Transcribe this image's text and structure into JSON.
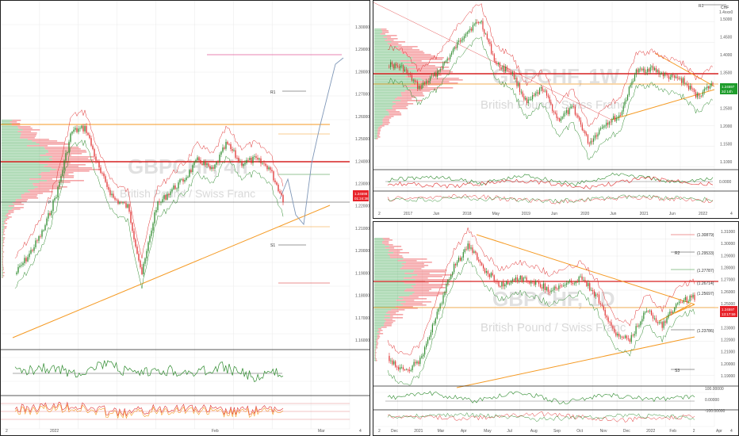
{
  "colors": {
    "up": "#2e8b2e",
    "down": "#e03131",
    "orange": "#f59a23",
    "red_line": "#d62020",
    "grid": "#e9e9e9",
    "profile_green": "#37a34a",
    "profile_red": "#e8353a",
    "price_tag_red": "#e8232a",
    "price_tag_green": "#1f9d2c",
    "pink": "#e05a9a",
    "projection": "#7f97b8"
  },
  "left_pane": {
    "watermark_symbol": "GBPCHF, 4h",
    "watermark_name": "British Pound / Swiss Franc",
    "price_labels": [
      "1.30000",
      "1.29000",
      "1.28000",
      "1.27000",
      "1.26000",
      "1.25000",
      "1.24000",
      "1.23000",
      "1.22000",
      "1.21000",
      "1.20000",
      "1.19000",
      "1.18000",
      "1.17000",
      "1.16000"
    ],
    "price_tag": "1.24598",
    "price_tag_sub": "01:24:38",
    "level_tag_r1": "R1",
    "level_tag_s1": "S1",
    "level_tag_p": "P",
    "date_labels": [
      "2022",
      "Feb",
      "Mar"
    ],
    "osc1_labels": [
      "100",
      "50",
      "0"
    ],
    "osc2_labels": [
      "80",
      "60",
      "40",
      "20"
    ],
    "corner_left": "2",
    "corner_right": "4"
  },
  "top_right_pane": {
    "watermark_symbol": "GBPCHF, 1W",
    "watermark_name": "British Pound / Swiss Franc",
    "currency": "CHF",
    "currency_sub": "1.4xxx0",
    "price_labels": [
      "1.5000",
      "1.4500",
      "1.4000",
      "1.3500",
      "1.3000",
      "1.2500",
      "1.2000",
      "1.1500",
      "1.1000"
    ],
    "price_tag": "1.24597",
    "price_tag_sub": "2d 14h",
    "r1_tag": "R1",
    "date_labels": [
      "2017",
      "Jun",
      "2018",
      "May",
      "2019",
      "Jun",
      "2020",
      "Jun",
      "2021",
      "Jun",
      "2022"
    ],
    "osc_labels": [
      "0.0000"
    ],
    "corner_left": "2",
    "corner_right": "4"
  },
  "bottom_right_pane": {
    "watermark_symbol": "GBPCHF, 1D",
    "watermark_name": "British Pound / Swiss Franc",
    "price_labels": [
      "1.31000",
      "1.30000",
      "1.29000",
      "1.28000",
      "1.27000",
      "1.26000",
      "1.25000",
      "1.24000",
      "1.23000",
      "1.22000",
      "1.21000",
      "1.20000",
      "1.19000"
    ],
    "level_labels": {
      "r3": "(1.30879)",
      "r2": "(1.29533)",
      "r1": "(1.27787)",
      "p1": "(1.26714)",
      "p2": "(1.25697)",
      "s1": "(1.23786)"
    },
    "price_tag": "1.24597",
    "price_tag_sub": "13:17:59",
    "r2_tag": "R2",
    "s3_tag": "S3",
    "date_labels": [
      "Dec",
      "2021",
      "Mar",
      "Apr",
      "May",
      "Jul",
      "Aug",
      "Sep",
      "Oct",
      "Nov",
      "Dec",
      "2022",
      "Feb",
      "2",
      "Apr"
    ],
    "osc_labels": [
      "100.00000",
      "0.00000",
      "-100.00000"
    ],
    "corner_left": "2",
    "corner_right": "4"
  }
}
